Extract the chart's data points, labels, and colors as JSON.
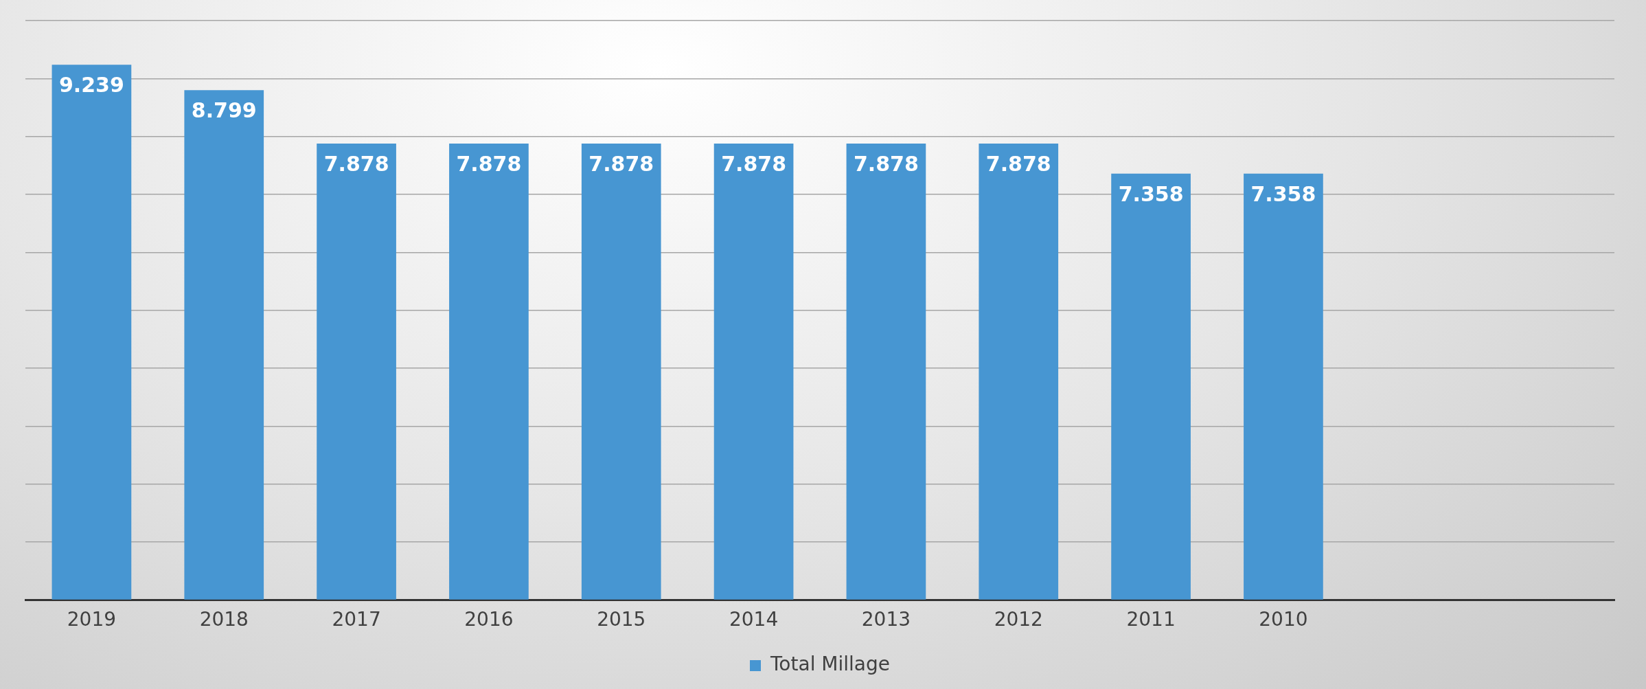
{
  "chart_data": {
    "type": "bar",
    "categories": [
      "2019",
      "2018",
      "2017",
      "2016",
      "2015",
      "2014",
      "2013",
      "2012",
      "2011",
      "2010",
      null,
      null
    ],
    "series": [
      {
        "name": "Total Millage",
        "color": "#4796d2",
        "values": [
          9.239,
          8.799,
          7.878,
          7.878,
          7.878,
          7.878,
          7.878,
          7.878,
          7.358,
          7.358,
          null,
          null
        ]
      }
    ],
    "ylim": [
      0,
      10
    ],
    "yticks": [
      {
        "value": 0,
        "label": null
      },
      {
        "value": 1,
        "label": null
      },
      {
        "value": 2,
        "label": null
      },
      {
        "value": 3,
        "label": null
      },
      {
        "value": 4,
        "label": null
      },
      {
        "value": 5,
        "label": null
      },
      {
        "value": 6,
        "label": null
      },
      {
        "value": 7,
        "label": null
      },
      {
        "value": 8,
        "label": null
      },
      {
        "value": 9,
        "label": null
      },
      {
        "value": 10,
        "label": null
      }
    ],
    "tick_labels": "x",
    "grid": "y",
    "legend": "bottom",
    "data_labels": true
  }
}
